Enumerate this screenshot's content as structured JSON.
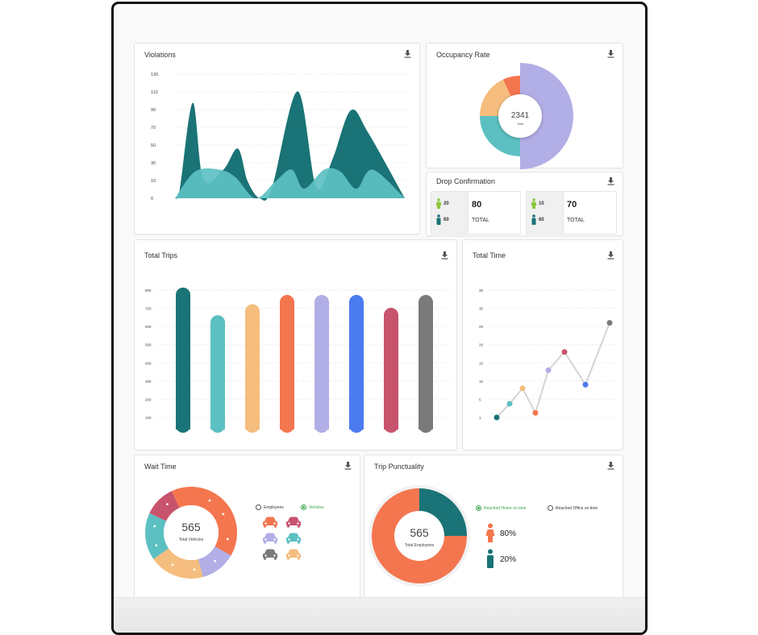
{
  "colors": {
    "teal_dark": "#1a7376",
    "teal_light": "#5cc0c2",
    "sand": "#f5bd7e",
    "coral": "#f4764f",
    "lavender": "#b2aee6",
    "blue": "#4b7bef",
    "crimson": "#c8536d",
    "grey": "#7a7a7a",
    "green": "#3aa54a"
  },
  "violations": {
    "title": "Violations",
    "chart_data": {
      "type": "area",
      "y_ticks": [
        "130",
        "110",
        "90",
        "70",
        "50",
        "30",
        "10",
        "0"
      ],
      "series": [
        {
          "points": [
            [
              0,
              0
            ],
            [
              6,
              10
            ],
            [
              22,
              100
            ],
            [
              35,
              20
            ],
            [
              60,
              30
            ],
            [
              78,
              52
            ],
            [
              90,
              18
            ],
            [
              105,
              0
            ],
            [
              120,
              10
            ],
            [
              152,
              112
            ],
            [
              175,
              12
            ],
            [
              195,
              40
            ],
            [
              218,
              92
            ],
            [
              240,
              68
            ],
            [
              285,
              0
            ]
          ]
        },
        {
          "points": [
            [
              0,
              0
            ],
            [
              25,
              28
            ],
            [
              55,
              30
            ],
            [
              75,
              22
            ],
            [
              100,
              0
            ],
            [
              125,
              18
            ],
            [
              145,
              30
            ],
            [
              160,
              10
            ],
            [
              185,
              30
            ],
            [
              205,
              28
            ],
            [
              225,
              10
            ],
            [
              245,
              30
            ],
            [
              285,
              0
            ]
          ]
        }
      ]
    }
  },
  "occupancy": {
    "title": "Occupancy Rate",
    "total": "2341",
    "total_label": "Total",
    "chart_data": {
      "type": "pie",
      "segments": [
        {
          "color": "lavender",
          "start": 0,
          "end": 180
        },
        {
          "color": "teal_light",
          "start": 180,
          "end": 270
        },
        {
          "color": "sand",
          "start": 270,
          "end": 335
        },
        {
          "color": "coral",
          "start": 335,
          "end": 360
        }
      ]
    }
  },
  "drop": {
    "title": "Drop Confirmation",
    "boxes": [
      {
        "female": "20",
        "male": "60",
        "total": "80",
        "total_label": "TOTAL"
      },
      {
        "female": "10",
        "male": "60",
        "total": "70",
        "total_label": "TOTAL"
      }
    ]
  },
  "trips": {
    "title": "Total Trips",
    "chart_data": {
      "type": "bar",
      "y_ticks": [
        "800",
        "700",
        "600",
        "500",
        "400",
        "300",
        "200",
        "100"
      ],
      "bars": [
        {
          "value": 770,
          "color": "teal_dark"
        },
        {
          "value": 620,
          "color": "teal_light"
        },
        {
          "value": 680,
          "color": "sand"
        },
        {
          "value": 730,
          "color": "coral"
        },
        {
          "value": 730,
          "color": "lavender"
        },
        {
          "value": 730,
          "color": "blue"
        },
        {
          "value": 660,
          "color": "crimson"
        },
        {
          "value": 730,
          "color": "grey"
        }
      ]
    }
  },
  "time": {
    "title": "Total Time",
    "chart_data": {
      "type": "line",
      "y_ticks": [
        "35",
        "30",
        "25",
        "20",
        "15",
        "10",
        "5",
        "1"
      ],
      "points": [
        {
          "y": 1,
          "color": "teal_dark"
        },
        {
          "y": 4,
          "color": "teal_light"
        },
        {
          "y": 8,
          "color": "sand"
        },
        {
          "y": 2,
          "color": "coral"
        },
        {
          "y": 13,
          "color": "lavender"
        },
        {
          "y": 18,
          "color": "crimson"
        },
        {
          "y": 9,
          "color": "blue"
        },
        {
          "y": 26,
          "color": "grey"
        }
      ]
    }
  },
  "wait": {
    "title": "Wait Time",
    "total": "565",
    "total_label": "Total Vehicles",
    "legend": {
      "employees": "Employees",
      "vehicles": "Vehicles"
    },
    "chart_data": {
      "type": "pie",
      "segments": [
        {
          "color": "coral",
          "start": 0,
          "end": 120
        },
        {
          "color": "lavender",
          "start": 120,
          "end": 165
        },
        {
          "color": "sand",
          "start": 165,
          "end": 235
        },
        {
          "color": "teal_light",
          "start": 235,
          "end": 295
        },
        {
          "color": "crimson",
          "start": 295,
          "end": 335
        },
        {
          "color": "coral",
          "start": 335,
          "end": 360
        }
      ]
    },
    "cars": [
      "coral",
      "crimson",
      "lavender",
      "teal_light",
      "grey",
      "sand"
    ]
  },
  "punctuality": {
    "title": "Trip Punctuality",
    "total": "565",
    "total_label": "Total Employees",
    "legend": {
      "home": "Reached Home on time",
      "office": "Reached Office on time"
    },
    "female_pct": "80%",
    "male_pct": "20%",
    "chart_data": {
      "type": "pie",
      "segments": [
        {
          "color": "teal_dark",
          "start": 0,
          "end": 90
        },
        {
          "color": "coral",
          "start": 90,
          "end": 360
        }
      ]
    }
  }
}
